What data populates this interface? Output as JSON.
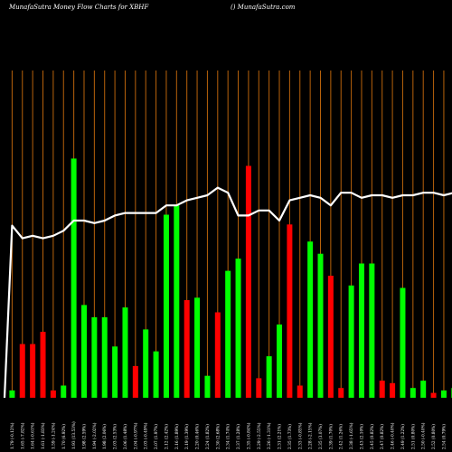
{
  "header": {
    "title": "MunafaSutra  Money Flow  Charts for XBHF",
    "site": "() MunafaSutra.com"
  },
  "colors": {
    "background": "#000000",
    "gridline": "#b8620b",
    "up_bar": "#00ff00",
    "down_bar": "#ff0000",
    "line": "#ffffff"
  },
  "chart_data": {
    "type": "bar",
    "title": "MunafaSutra  Money Flow  Charts for XBHF",
    "categories": [
      "1.79 (-0.12%)",
      "1.65 (-7.82%)",
      "1.64 (-0.61%)",
      "1.61 (-1.83%)",
      "1.59 (-1.24%)",
      "1.70 (6.92%)",
      "1.93 (13.53%)",
      "1.98 (2.59%)",
      "1.94 (-2.02%)",
      "1.98 (2.06%)",
      "2.03 (2.53%)",
      "2.06 (1.48%)",
      "2.04 (-0.97%)",
      "2.03 (-0.49%)",
      "2.07 (1.97%)",
      "2.12 (2.42%)",
      "2.16 (1.89%)",
      "2.19 (1.39%)",
      "2.20 (0.46%)",
      "2.24 (1.82%)",
      "2.30 (2.68%)",
      "2.34 (1.74%)",
      "2.37 (1.28%)",
      "2.35 (-0.84%)",
      "2.29 (-2.55%)",
      "2.26 (-1.31%)",
      "2.31 (2.21%)",
      "2.35 (1.73%)",
      "2.33 (-0.85%)",
      "2.28 (-2.15%)",
      "2.35 (3.07%)",
      "2.39 (1.70%)",
      "2.42 (1.26%)",
      "2.38 (-1.65%)",
      "2.43 (2.10%)",
      "2.45 (0.82%)",
      "2.47 (0.82%)",
      "2.46 (-0.40%)",
      "2.49 (1.22%)",
      "2.51 (0.80%)",
      "2.50 (-0.40%)",
      "2.52 (0.80%)",
      "2.54 (0.79%)",
      "2.56 (0.79%)"
    ],
    "up": [
      true,
      false,
      false,
      false,
      false,
      true,
      true,
      true,
      true,
      true,
      true,
      true,
      false,
      true,
      true,
      true,
      true,
      false,
      true,
      true,
      false,
      true,
      true,
      false,
      false,
      true,
      true,
      false,
      false,
      true,
      true,
      false,
      false,
      true,
      true,
      true,
      false,
      false,
      true,
      true,
      true,
      false,
      true,
      true
    ],
    "bar_values": [
      3,
      22,
      22,
      27,
      3,
      5,
      98,
      38,
      33,
      33,
      21,
      37,
      13,
      28,
      19,
      75,
      79,
      40,
      41,
      9,
      35,
      52,
      57,
      95,
      8,
      17,
      30,
      71,
      5,
      64,
      59,
      50,
      4,
      46,
      55,
      55,
      7,
      6,
      45,
      4,
      7,
      2,
      3,
      4
    ],
    "line_values": [
      68,
      63,
      64,
      63,
      64,
      66,
      70,
      70,
      69,
      70,
      72,
      73,
      73,
      73,
      73,
      76,
      76,
      78,
      79,
      80,
      83,
      81,
      72,
      72,
      74,
      74,
      70,
      78,
      79,
      80,
      79,
      76,
      81,
      81,
      79,
      80,
      80,
      79,
      80,
      80,
      81,
      81,
      80,
      81
    ]
  }
}
